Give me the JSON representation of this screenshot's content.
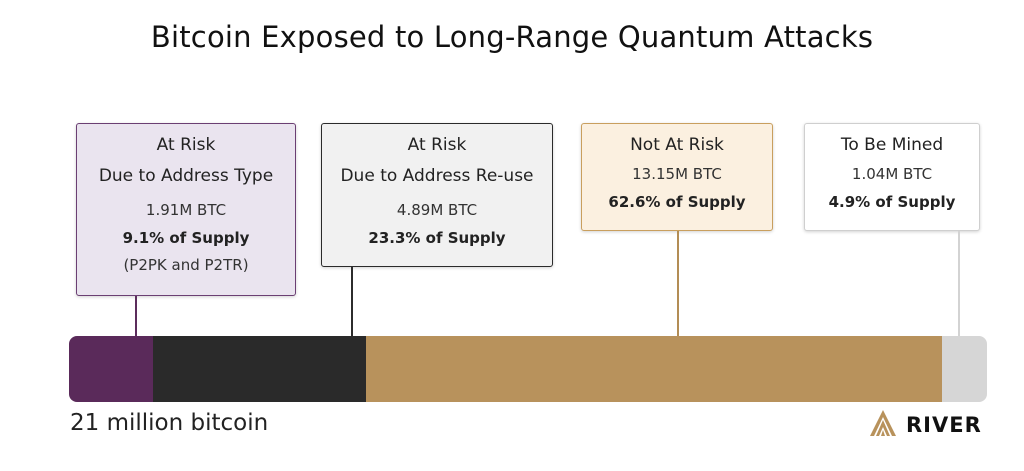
{
  "chart_data": {
    "type": "bar",
    "title": "Bitcoin Exposed to Long-Range Quantum Attacks",
    "total_label": "21 million bitcoin",
    "categories": [
      "At Risk Due to Address Type",
      "At Risk Due to Address Re-use",
      "Not At Risk",
      "To Be Mined"
    ],
    "values": [
      1.91,
      4.89,
      13.15,
      1.04
    ],
    "percent_of_supply": [
      9.1,
      23.3,
      62.6,
      4.9
    ],
    "series": [
      {
        "name": "At Risk Due to Address Type",
        "heading": [
          "At Risk",
          "Due to Address Type"
        ],
        "amount": "1.91M BTC",
        "share": "9.1% of Supply",
        "note": "(P2PK and P2TR)",
        "value": 1.91,
        "color": "#5a2a5a"
      },
      {
        "name": "At Risk Due to Address Re-use",
        "heading": [
          "At Risk",
          "Due to Address Re-use"
        ],
        "amount": "4.89M BTC",
        "share": "23.3% of Supply",
        "value": 4.89,
        "color": "#2a2a2a"
      },
      {
        "name": "Not At Risk",
        "heading": [
          "Not At Risk"
        ],
        "amount": "13.15M BTC",
        "share": "62.6% of Supply",
        "value": 13.15,
        "color": "#b8925c"
      },
      {
        "name": "To Be Mined",
        "heading": [
          "To Be Mined"
        ],
        "amount": "1.04M BTC",
        "share": "4.9% of Supply",
        "value": 1.04,
        "color": "#d6d6d6"
      }
    ]
  },
  "brand": {
    "name": "RIVER",
    "logo_icon": "river-chevron-logo-icon",
    "logo_color": "#b8925c"
  }
}
